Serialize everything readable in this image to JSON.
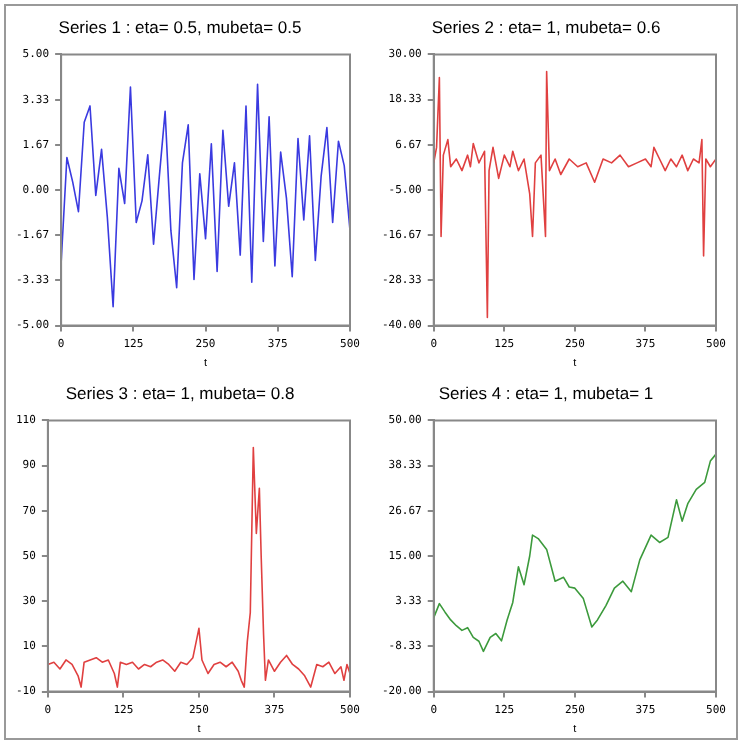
{
  "chart_data": [
    {
      "type": "line",
      "title": "Series 1 : eta= 0.5, mubeta= 0.5",
      "xlabel": "t",
      "marker": "none",
      "grid": false,
      "xlim": [
        0,
        500
      ],
      "xticks": [
        0,
        125,
        250,
        375,
        500
      ],
      "ylim": [
        -5,
        5
      ],
      "yticks": [
        {
          "value": -5,
          "label": "-5.00"
        },
        {
          "value": -3.33,
          "label": "-3.33"
        },
        {
          "value": -1.67,
          "label": "-1.67"
        },
        {
          "value": 0,
          "label": "0.00"
        },
        {
          "value": 1.67,
          "label": "1.67"
        },
        {
          "value": 3.33,
          "label": "3.33"
        },
        {
          "value": 5,
          "label": "5.00"
        }
      ],
      "x": [
        0,
        10,
        20,
        30,
        40,
        50,
        60,
        70,
        80,
        90,
        100,
        110,
        120,
        130,
        140,
        150,
        160,
        170,
        180,
        190,
        200,
        210,
        220,
        230,
        240,
        250,
        260,
        270,
        280,
        290,
        300,
        310,
        320,
        330,
        340,
        350,
        360,
        370,
        380,
        390,
        400,
        410,
        420,
        430,
        440,
        450,
        460,
        470,
        480,
        490,
        500
      ],
      "series": [
        {
          "color": "#3a3ae0",
          "values": [
            -2.7,
            1.2,
            0.3,
            -0.8,
            2.5,
            3.1,
            -0.2,
            1.5,
            -1.0,
            -4.3,
            0.8,
            -0.5,
            3.8,
            -1.2,
            -0.4,
            1.3,
            -2.0,
            0.5,
            2.9,
            -1.5,
            -3.6,
            1.0,
            2.4,
            -3.3,
            0.6,
            -1.8,
            1.7,
            -3.0,
            2.2,
            -0.6,
            1.0,
            -2.4,
            3.1,
            -3.4,
            3.9,
            -1.9,
            2.7,
            -2.8,
            1.4,
            -0.3,
            -3.2,
            1.9,
            -1.1,
            2.0,
            -2.6,
            0.5,
            2.3,
            -1.2,
            1.8,
            0.9,
            -1.5
          ]
        }
      ]
    },
    {
      "type": "line",
      "title": "Series 2 : eta= 1, mubeta= 0.6",
      "xlabel": "t",
      "marker": "none",
      "grid": false,
      "xlim": [
        0,
        500
      ],
      "xticks": [
        0,
        125,
        250,
        375,
        500
      ],
      "ylim": [
        -40,
        30
      ],
      "yticks": [
        {
          "value": -40,
          "label": "-40.00"
        },
        {
          "value": -28.33,
          "label": "-28.33"
        },
        {
          "value": -16.67,
          "label": "-16.67"
        },
        {
          "value": -5,
          "label": "-5.00"
        },
        {
          "value": 6.67,
          "label": "6.67"
        },
        {
          "value": 18.33,
          "label": "18.33"
        },
        {
          "value": 30,
          "label": "30.00"
        }
      ],
      "x": [
        0,
        5,
        10,
        13,
        17,
        25,
        30,
        40,
        50,
        60,
        65,
        70,
        80,
        90,
        95,
        98,
        105,
        115,
        125,
        135,
        140,
        150,
        160,
        170,
        175,
        180,
        190,
        198,
        200,
        205,
        215,
        225,
        240,
        255,
        270,
        285,
        300,
        315,
        330,
        345,
        360,
        375,
        385,
        390,
        400,
        410,
        420,
        430,
        440,
        450,
        460,
        470,
        475,
        478,
        482,
        490,
        500
      ],
      "series": [
        {
          "color": "#e04040",
          "values": [
            2,
            6,
            24,
            -17,
            4,
            8,
            1,
            3,
            0,
            4,
            1,
            7,
            2,
            5,
            -37.9,
            0,
            6,
            -2,
            4,
            1,
            5,
            0,
            3,
            -6,
            -17,
            2,
            4,
            -17,
            25.6,
            0,
            3,
            -1,
            3,
            1,
            2,
            -3,
            3,
            2,
            4,
            1,
            2,
            3,
            1,
            6,
            3,
            0,
            3,
            1,
            4,
            0,
            3,
            2,
            8,
            -22,
            3,
            1,
            3
          ]
        }
      ]
    },
    {
      "type": "line",
      "title": "Series 3 : eta= 1, mubeta= 0.8",
      "xlabel": "t",
      "marker": "none",
      "grid": false,
      "xlim": [
        0,
        500
      ],
      "xticks": [
        0,
        125,
        250,
        375,
        500
      ],
      "ylim": [
        -10,
        110
      ],
      "yticks": [
        -10,
        10,
        30,
        50,
        70,
        90,
        110
      ],
      "x": [
        0,
        10,
        20,
        30,
        40,
        50,
        55,
        60,
        70,
        80,
        90,
        100,
        110,
        115,
        120,
        130,
        140,
        150,
        160,
        170,
        180,
        190,
        200,
        210,
        220,
        230,
        240,
        250,
        255,
        265,
        275,
        285,
        295,
        305,
        315,
        320,
        325,
        330,
        335,
        340,
        345,
        350,
        353,
        357,
        360,
        365,
        375,
        385,
        395,
        405,
        415,
        425,
        435,
        445,
        455,
        465,
        475,
        485,
        490,
        495,
        500
      ],
      "series": [
        {
          "color": "#e04040",
          "values": [
            2,
            3,
            0,
            4,
            2,
            -3,
            -8,
            3,
            4,
            5,
            3,
            4,
            -2,
            -8,
            3,
            2,
            3,
            0,
            2,
            1,
            3,
            4,
            2,
            -1,
            3,
            2,
            5,
            18,
            4,
            -2,
            2,
            3,
            1,
            3,
            -1,
            -5,
            -8,
            12,
            25,
            98,
            60,
            80,
            50,
            15,
            -5,
            4,
            -1,
            3,
            6,
            2,
            0,
            -3,
            -8,
            2,
            1,
            3,
            -2,
            1,
            -5,
            2,
            -2
          ]
        }
      ]
    },
    {
      "type": "line",
      "title": "Series 4 : eta= 1, mubeta= 1",
      "xlabel": "t",
      "marker": "none",
      "grid": false,
      "xlim": [
        0,
        500
      ],
      "xticks": [
        0,
        125,
        250,
        375,
        500
      ],
      "ylim": [
        -20,
        50
      ],
      "yticks": [
        {
          "value": -20,
          "label": "-20.00"
        },
        {
          "value": -8.33,
          "label": "-8.33"
        },
        {
          "value": 3.33,
          "label": "3.33"
        },
        {
          "value": 15,
          "label": "15.00"
        },
        {
          "value": 26.67,
          "label": "26.67"
        },
        {
          "value": 38.33,
          "label": "38.33"
        },
        {
          "value": 50,
          "label": "50.00"
        }
      ],
      "x": [
        0,
        10,
        20,
        30,
        40,
        50,
        60,
        70,
        80,
        88,
        100,
        110,
        120,
        130,
        140,
        150,
        160,
        170,
        175,
        185,
        200,
        215,
        230,
        240,
        250,
        265,
        280,
        290,
        305,
        320,
        335,
        350,
        365,
        385,
        400,
        415,
        430,
        440,
        450,
        465,
        480,
        490,
        500
      ],
      "series": [
        {
          "color": "#3c9a3c",
          "values": [
            -0.9,
            2.7,
            0.5,
            -1.5,
            -3.0,
            -4.2,
            -3.5,
            -6.0,
            -7.0,
            -9.6,
            -6.0,
            -5.0,
            -6.9,
            -1.5,
            3.0,
            12.2,
            7.6,
            15.0,
            20.4,
            19.5,
            16.7,
            8.5,
            9.5,
            7.0,
            6.7,
            4.0,
            -3.3,
            -1.5,
            2.2,
            6.7,
            8.5,
            5.8,
            14.0,
            20.4,
            18.5,
            19.8,
            29.5,
            24.0,
            28.5,
            32.2,
            34.0,
            39.5,
            41.3
          ]
        }
      ]
    }
  ]
}
